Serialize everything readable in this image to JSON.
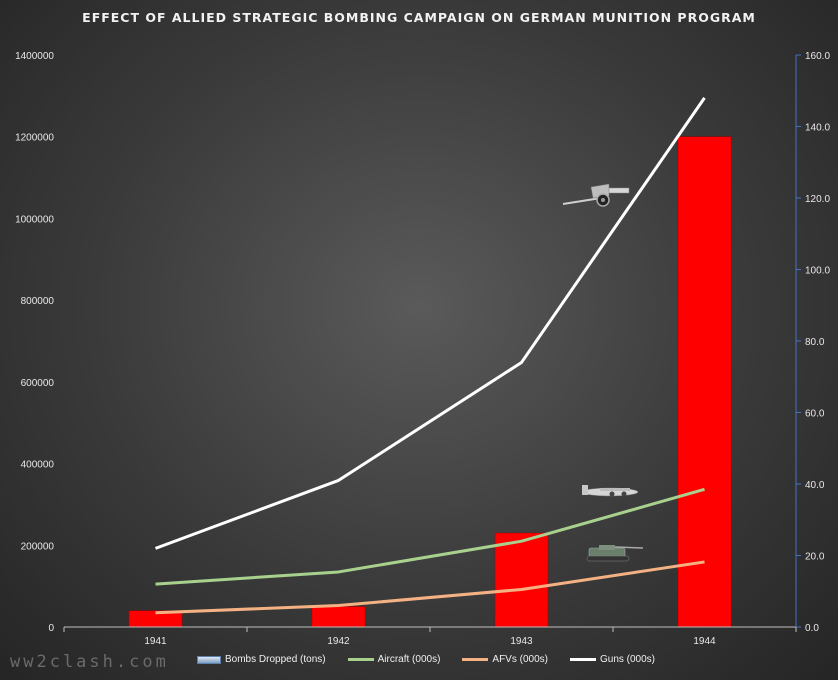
{
  "chart_data": {
    "type": "bar+line",
    "title": "EFFECT OF ALLIED STRATEGIC BOMBING CAMPAIGN ON GERMAN MUNITION PROGRAM",
    "categories": [
      "1941",
      "1942",
      "1943",
      "1944"
    ],
    "y_left": {
      "min": 0,
      "max": 1400000,
      "ticks": [
        "0",
        "200000",
        "400000",
        "600000",
        "800000",
        "1000000",
        "1200000",
        "1400000"
      ]
    },
    "y_right": {
      "min": 0,
      "max": 160,
      "ticks": [
        "0.0",
        "20.0",
        "40.0",
        "60.0",
        "80.0",
        "100.0",
        "120.0",
        "140.0",
        "160.0"
      ]
    },
    "bars": {
      "name": "Bombs Dropped (tons)",
      "axis": "left",
      "color": "#ff0000",
      "values": [
        40000,
        50000,
        230000,
        1200000
      ]
    },
    "series": [
      {
        "name": "Aircraft (000s)",
        "axis": "right",
        "color": "#a9d18e",
        "values": [
          12.0,
          15.4,
          24.0,
          38.5
        ]
      },
      {
        "name": "AFVs (000s)",
        "axis": "right",
        "color": "#f4b183",
        "values": [
          4.0,
          6.0,
          10.5,
          18.2
        ]
      },
      {
        "name": "Guns (000s)",
        "axis": "right",
        "color": "#ffffff",
        "values": [
          22.0,
          41.0,
          74.0,
          148.0
        ]
      }
    ]
  },
  "watermark": "ww2clash.com",
  "icons": [
    "artillery-gun-icon",
    "bomber-aircraft-icon",
    "tank-icon"
  ]
}
